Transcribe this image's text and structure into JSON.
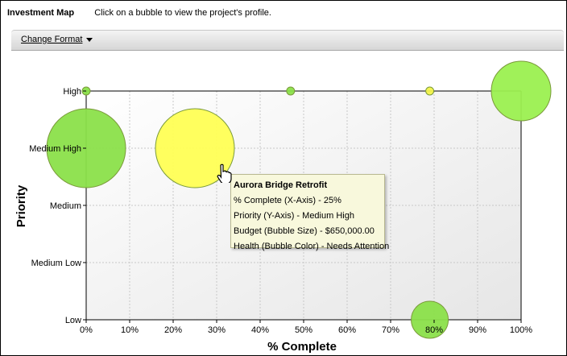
{
  "header": {
    "title": "Investment Map",
    "hint": "Click on a bubble to view the project's profile."
  },
  "toolbar": {
    "change_format": "Change Format"
  },
  "chart_data": {
    "type": "scatter",
    "title": "",
    "xlabel": "% Complete",
    "ylabel": "Priority",
    "xlim": [
      0,
      100
    ],
    "x_ticks": [
      "0%",
      "10%",
      "20%",
      "30%",
      "40%",
      "50%",
      "60%",
      "70%",
      "80%",
      "90%",
      "100%"
    ],
    "y_categories": [
      "Low",
      "Medium Low",
      "Medium",
      "Medium High",
      "High"
    ],
    "grid": true,
    "points": [
      {
        "x": 0,
        "y": "High",
        "size": "small",
        "color": "#8be04a"
      },
      {
        "x": 47,
        "y": "High",
        "size": "small",
        "color": "#8be04a"
      },
      {
        "x": 79,
        "y": "High",
        "size": "small",
        "color": "#f3f34a"
      },
      {
        "x": 100,
        "y": "High",
        "size": "large",
        "color": "#9bf050"
      },
      {
        "x": 0,
        "y": "Medium High",
        "size": "large",
        "color": "#8be04a"
      },
      {
        "x": 25,
        "y": "Medium High",
        "size": "large",
        "color": "#ffff55"
      },
      {
        "x": 79,
        "y": "Low",
        "size": "medium",
        "color": "#8be04a"
      }
    ]
  },
  "tooltip": {
    "title": "Aurora Bridge Retrofit",
    "lines": [
      "% Complete (X-Axis) - 25%",
      "Priority (Y-Axis) - Medium High",
      "Budget (Bubble Size) - $650,000.00",
      "Health (Bubble Color) - Needs Attention"
    ]
  }
}
